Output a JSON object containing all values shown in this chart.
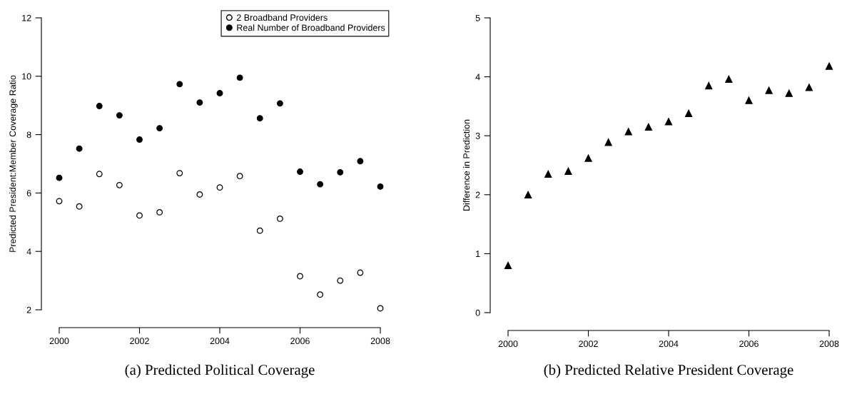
{
  "chart_data": [
    {
      "type": "scatter",
      "ylabel": "Predicted President:Member Coverage Ratio",
      "x": [
        2000,
        2000.5,
        2001,
        2001.5,
        2002,
        2002.5,
        2003,
        2003.5,
        2004,
        2004.5,
        2005,
        2005.5,
        2006,
        2006.5,
        2007,
        2007.5,
        2008
      ],
      "series": [
        {
          "name": "2 Broadband Providers",
          "color": "#000000",
          "values": [
            5.72,
            5.54,
            6.65,
            6.27,
            5.23,
            5.34,
            6.68,
            5.95,
            6.19,
            6.58,
            4.71,
            5.12,
            3.15,
            2.52,
            3.0,
            3.27,
            2.05
          ]
        },
        {
          "name": "Real Number of Broadband Providers",
          "color": "#000000",
          "values": [
            6.52,
            7.52,
            8.98,
            8.66,
            7.83,
            8.22,
            9.73,
            9.1,
            9.42,
            9.95,
            8.56,
            9.07,
            6.73,
            6.3,
            6.71,
            7.09,
            6.22
          ]
        }
      ],
      "marker": "circle",
      "xlim": [
        2000,
        2008
      ],
      "ylim": [
        2,
        12
      ],
      "xticks": [
        2000,
        2002,
        2004,
        2006,
        2008
      ],
      "yticks": [
        2,
        4,
        6,
        8,
        10,
        12
      ],
      "grid": false,
      "legend": "top right",
      "annotations": [
        "(a) Predicted Political Coverage"
      ]
    },
    {
      "type": "scatter",
      "ylabel": "Difference in Prediction",
      "x": [
        2000,
        2000.5,
        2001,
        2001.5,
        2002,
        2002.5,
        2003,
        2003.5,
        2004,
        2004.5,
        2005,
        2005.5,
        2006,
        2006.5,
        2007,
        2007.5,
        2008
      ],
      "series": [
        {
          "color": "#000000",
          "values": [
            0.8,
            2.0,
            2.35,
            2.4,
            2.62,
            2.89,
            3.07,
            3.15,
            3.24,
            3.38,
            3.85,
            3.96,
            3.6,
            3.77,
            3.72,
            3.82,
            4.18
          ]
        }
      ],
      "marker": "triangle",
      "xlim": [
        2000,
        2008
      ],
      "ylim": [
        0,
        5
      ],
      "xticks": [
        2000,
        2002,
        2004,
        2006,
        2008
      ],
      "yticks": [
        0,
        1,
        2,
        3,
        4,
        5
      ],
      "grid": false,
      "legend": false,
      "annotations": [
        "(b) Predicted Relative President Coverage"
      ]
    }
  ]
}
